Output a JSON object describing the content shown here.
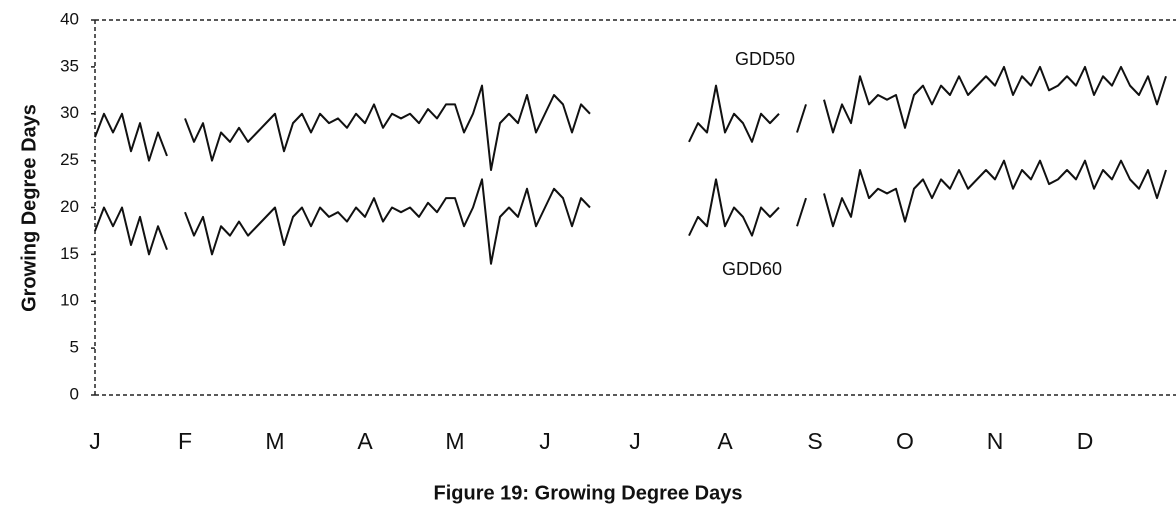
{
  "chart_data": {
    "type": "line",
    "title": "Figure 19: Growing Degree Days",
    "y_label": "Growing Degree Days",
    "categories": [
      "J",
      null,
      null,
      null,
      null,
      null,
      null,
      null,
      null,
      null,
      "F",
      null,
      null,
      null,
      null,
      null,
      null,
      null,
      null,
      null,
      "M",
      null,
      null,
      null,
      null,
      null,
      null,
      null,
      null,
      null,
      "A",
      null,
      null,
      null,
      null,
      null,
      null,
      null,
      null,
      null,
      "M",
      null,
      null,
      null,
      null,
      null,
      null,
      null,
      null,
      null,
      "J",
      null,
      null,
      null,
      null,
      null,
      null,
      null,
      null,
      null,
      "J",
      null,
      null,
      null,
      null,
      null,
      null,
      null,
      null,
      null,
      "A",
      null,
      null,
      null,
      null,
      null,
      null,
      null,
      null,
      null,
      "S",
      null,
      null,
      null,
      null,
      null,
      null,
      null,
      null,
      null,
      "O",
      null,
      null,
      null,
      null,
      null,
      null,
      null,
      null,
      null,
      "N",
      null,
      null,
      null,
      null,
      null,
      null,
      null,
      null,
      null,
      "D",
      null,
      null,
      null,
      null,
      null,
      null,
      null,
      null,
      null
    ],
    "series": [
      {
        "name": "GDD50",
        "color": "#111111",
        "values": [
          27.5,
          30,
          28,
          30,
          26,
          29,
          25,
          28,
          25.5,
          null,
          29.5,
          27,
          29,
          25,
          28,
          27,
          28.5,
          27,
          28,
          29,
          30,
          26,
          29,
          30,
          28,
          30,
          29,
          29.5,
          28.5,
          30,
          29,
          31,
          28.5,
          30,
          29.5,
          30,
          29,
          30.5,
          29.5,
          31,
          31,
          28,
          30,
          33,
          24,
          29,
          30,
          29,
          32,
          28,
          30,
          32,
          31,
          28,
          31,
          30,
          null,
          null,
          null,
          null,
          null,
          null,
          null,
          null,
          null,
          null,
          27,
          29,
          28,
          33,
          28,
          30,
          29,
          27,
          30,
          29,
          30,
          null,
          28,
          31,
          null,
          31.5,
          28,
          31,
          29,
          34,
          31,
          32,
          31.5,
          32,
          28.5,
          32,
          33,
          31,
          33,
          32,
          34,
          32,
          33,
          34,
          33,
          35,
          32,
          34,
          33,
          35,
          32.5,
          33,
          34,
          33,
          35,
          32,
          34,
          33,
          35,
          33,
          32,
          34,
          31,
          34
        ]
      },
      {
        "name": "GDD60",
        "color": "#111111",
        "values": [
          17.5,
          20,
          18,
          20,
          16,
          19,
          15,
          18,
          15.5,
          null,
          19.5,
          17,
          19,
          15,
          18,
          17,
          18.5,
          17,
          18,
          19,
          20,
          16,
          19,
          20,
          18,
          20,
          19,
          19.5,
          18.5,
          20,
          19,
          21,
          18.5,
          20,
          19.5,
          20,
          19,
          20.5,
          19.5,
          21,
          21,
          18,
          20,
          23,
          14,
          19,
          20,
          19,
          22,
          18,
          20,
          22,
          21,
          18,
          21,
          20,
          null,
          null,
          null,
          null,
          null,
          null,
          null,
          null,
          null,
          null,
          17,
          19,
          18,
          23,
          18,
          20,
          19,
          17,
          20,
          19,
          20,
          null,
          18,
          21,
          null,
          21.5,
          18,
          21,
          19,
          24,
          21,
          22,
          21.5,
          22,
          18.5,
          22,
          23,
          21,
          23,
          22,
          24,
          22,
          23,
          24,
          23,
          25,
          22,
          24,
          23,
          25,
          22.5,
          23,
          24,
          23,
          25,
          22,
          24,
          23,
          25,
          23,
          22,
          24,
          21,
          24
        ]
      }
    ],
    "ylim": [
      0,
      40
    ],
    "yticks": [
      0,
      5,
      10,
      15,
      20,
      25,
      30,
      35,
      40
    ],
    "grid": false
  }
}
